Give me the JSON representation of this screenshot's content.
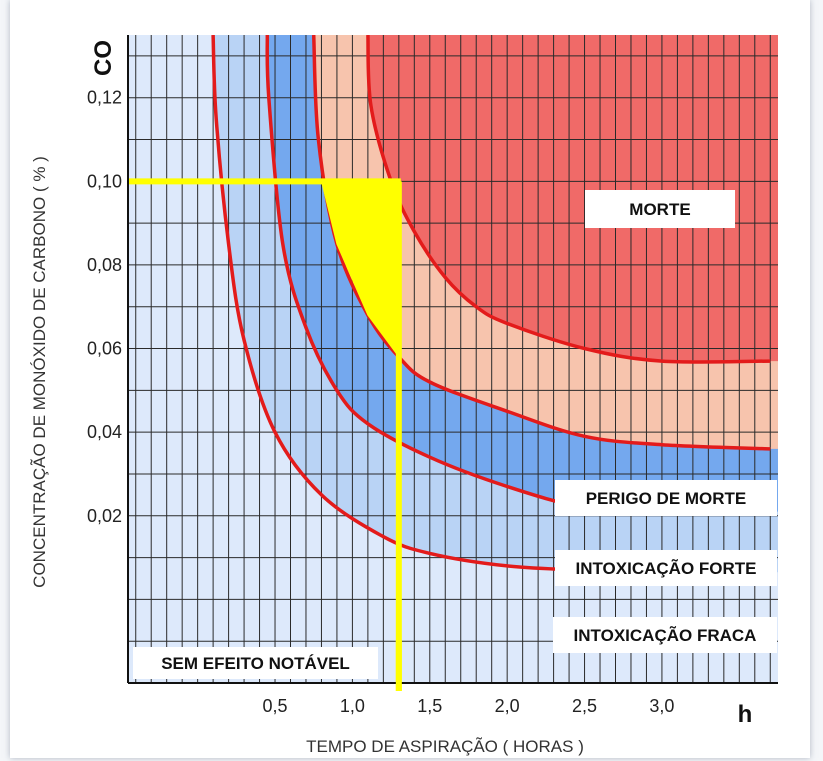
{
  "chart_data": {
    "type": "area",
    "xlabel": "TEMPO DE ASPIRAÇÃO ( HORAS )",
    "ylabel": "CONCENTRAÇÃO DE MONÓXIDO DE CARBONO ( % )",
    "y_unit_label": "CO",
    "x_unit_label": "h",
    "xlim": [
      -0.45,
      3.75
    ],
    "ylim": [
      -0.02,
      0.135
    ],
    "x_ticks": [
      0.5,
      1.0,
      1.5,
      2.0,
      2.5,
      3.0
    ],
    "x_tick_labels": [
      "0,5",
      "1,0",
      "1,5",
      "2,0",
      "2,5",
      "3,0"
    ],
    "y_ticks": [
      0.02,
      0.04,
      0.06,
      0.08,
      0.1,
      0.12
    ],
    "y_tick_labels": [
      "0,02",
      "0,04",
      "0,06",
      "0,08",
      "0,10",
      "0,12"
    ],
    "grid": true,
    "zones": [
      {
        "label": "SEM EFEITO NOTÁVEL",
        "color": "#dde9fb"
      },
      {
        "label": "INTOXICAÇÃO FRACA",
        "color": "#b9d3f5"
      },
      {
        "label": "INTOXICAÇÃO FORTE",
        "color": "#74a8ee"
      },
      {
        "label": "PERIGO DE MORTE",
        "color": "#f7c4ad"
      },
      {
        "label": "MORTE",
        "color": "#f06a68"
      }
    ],
    "boundary_curves": [
      {
        "between": "SEM EFEITO NOTÁVEL / INTOXICAÇÃO FRACA",
        "x": [
          0.1,
          0.12,
          0.2,
          0.3,
          0.5,
          0.8,
          1.2,
          1.5,
          2.0,
          2.5,
          3.0,
          3.7
        ],
        "y": [
          0.135,
          0.115,
          0.085,
          0.062,
          0.04,
          0.025,
          0.015,
          0.011,
          0.008,
          0.007,
          0.0065,
          0.0065
        ]
      },
      {
        "between": "INTOXICAÇÃO FRACA / INTOXICAÇÃO FORTE",
        "x": [
          0.45,
          0.46,
          0.55,
          0.7,
          0.9,
          1.1,
          1.5,
          2.0,
          2.5,
          3.0,
          3.7
        ],
        "y": [
          0.135,
          0.12,
          0.085,
          0.065,
          0.05,
          0.042,
          0.034,
          0.027,
          0.022,
          0.021,
          0.021
        ]
      },
      {
        "between": "INTOXICAÇÃO FORTE / PERIGO DE MORTE",
        "x": [
          0.75,
          0.78,
          0.9,
          1.1,
          1.3,
          1.5,
          2.0,
          2.5,
          3.0,
          3.7
        ],
        "y": [
          0.135,
          0.11,
          0.085,
          0.068,
          0.058,
          0.052,
          0.045,
          0.039,
          0.037,
          0.036
        ]
      },
      {
        "between": "PERIGO DE MORTE / MORTE",
        "x": [
          1.1,
          1.12,
          1.25,
          1.4,
          1.6,
          1.8,
          2.0,
          2.5,
          3.0,
          3.7
        ],
        "y": [
          0.135,
          0.118,
          0.1,
          0.088,
          0.077,
          0.07,
          0.066,
          0.06,
          0.057,
          0.057
        ]
      }
    ],
    "annotation": {
      "color": "#ffff00",
      "horizontal_line": {
        "y": 0.1,
        "x_from": -0.45,
        "x_to": 1.3
      },
      "vertical_line": {
        "x": 1.3,
        "y_from": 0.1,
        "y_to": -0.02
      },
      "highlight_region": "INTOXICAÇÃO FORTE / PERIGO DE MORTE zone between x 0,8 and 1,3 below CO 0,10"
    }
  }
}
